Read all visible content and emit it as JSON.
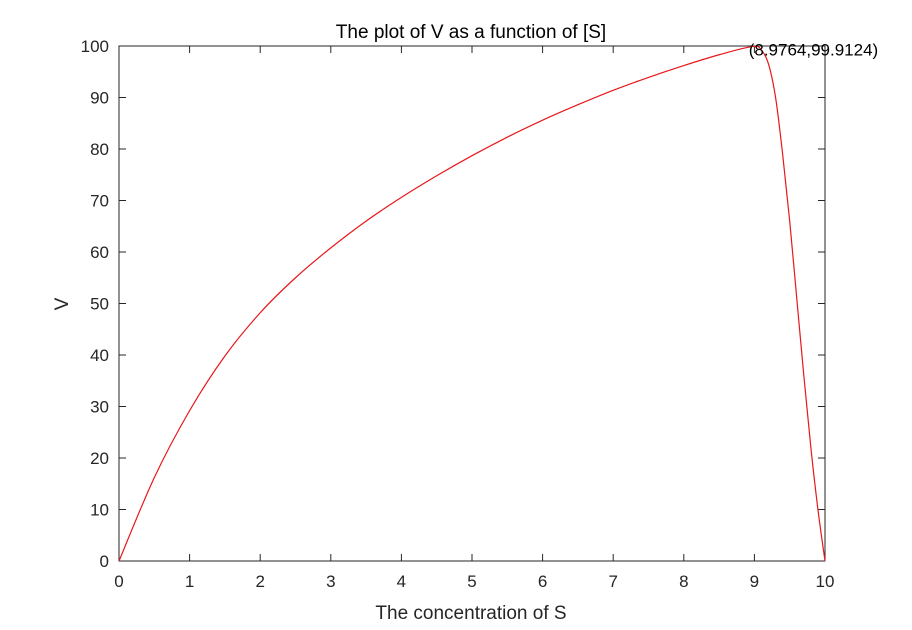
{
  "chart_data": {
    "type": "line",
    "title": "The plot of V as a function of [S]",
    "xlabel": "The concentration of S",
    "ylabel": "V",
    "xlim": [
      0,
      10
    ],
    "ylim": [
      0,
      100
    ],
    "x_ticks": [
      0,
      1,
      2,
      3,
      4,
      5,
      6,
      7,
      8,
      9,
      10
    ],
    "y_ticks": [
      0,
      10,
      20,
      30,
      40,
      50,
      60,
      70,
      80,
      90,
      100
    ],
    "grid": false,
    "series": [
      {
        "color": "#e8171a",
        "points": [
          [
            0,
            0
          ],
          [
            0.5,
            16.2
          ],
          [
            1,
            29.2
          ],
          [
            1.5,
            39.8
          ],
          [
            2,
            48.2
          ],
          [
            2.5,
            55.0
          ],
          [
            3,
            60.8
          ],
          [
            3.5,
            66.0
          ],
          [
            4,
            70.6
          ],
          [
            4.5,
            74.8
          ],
          [
            5,
            78.7
          ],
          [
            5.5,
            82.3
          ],
          [
            6,
            85.6
          ],
          [
            6.5,
            88.6
          ],
          [
            7,
            91.4
          ],
          [
            7.5,
            93.9
          ],
          [
            8,
            96.2
          ],
          [
            8.5,
            98.3
          ],
          [
            8.9764,
            99.9124
          ],
          [
            9.1,
            99.2
          ],
          [
            9.2,
            96.5
          ],
          [
            9.3,
            90.0
          ],
          [
            9.4,
            79.0
          ],
          [
            9.5,
            66.0
          ],
          [
            9.6,
            51.0
          ],
          [
            9.7,
            36.0
          ],
          [
            9.8,
            22.0
          ],
          [
            9.9,
            10.0
          ],
          [
            10,
            0
          ]
        ]
      }
    ],
    "annotations": [
      {
        "text": "(8.9764,99.9124)",
        "x": 8.9764,
        "y": 99.9124
      }
    ]
  }
}
